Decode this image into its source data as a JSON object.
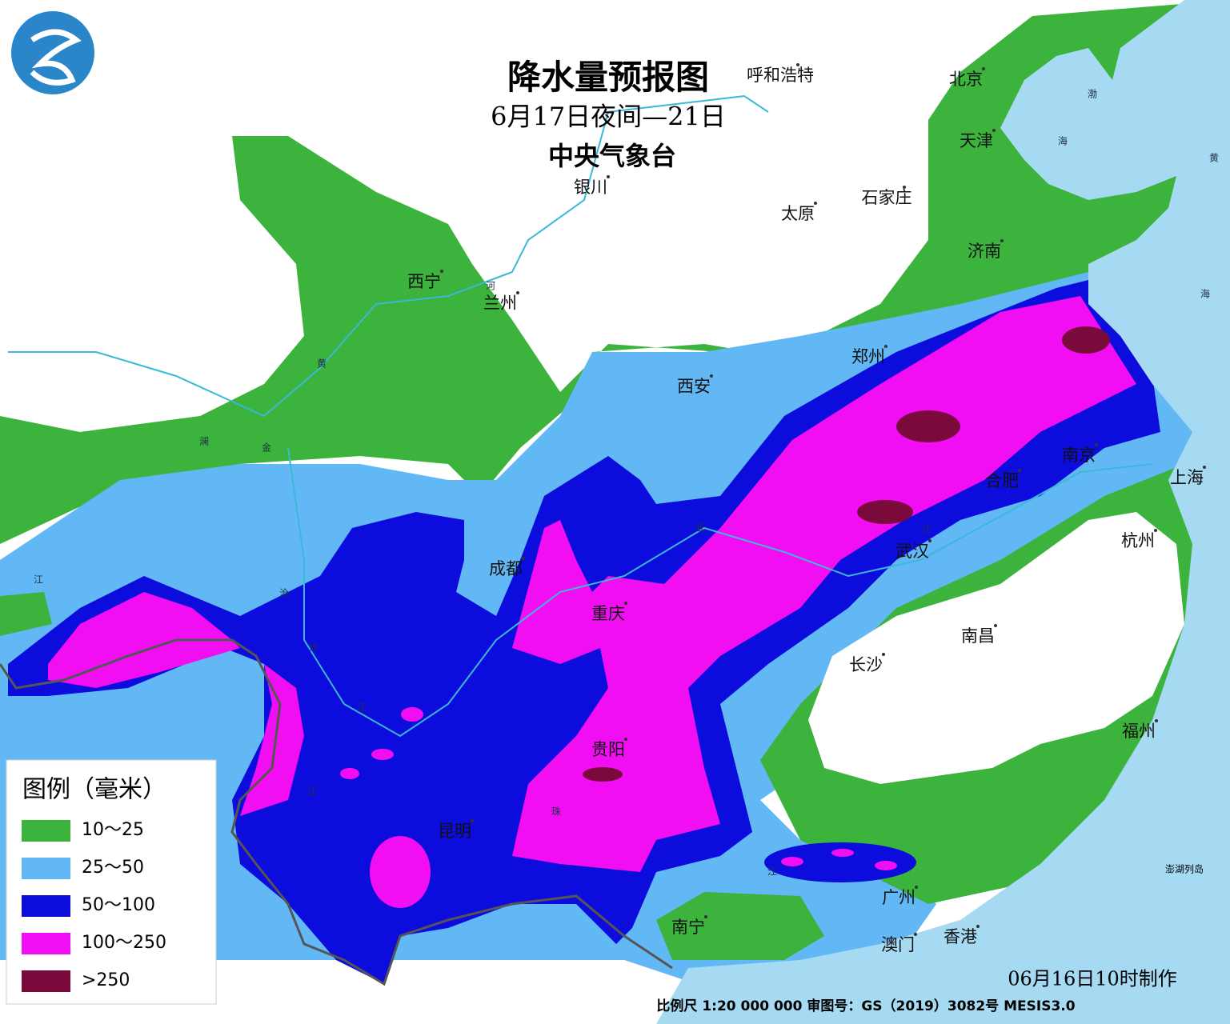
{
  "header": {
    "title": "降水量预报图",
    "subtitle": "6月17日夜间—21日",
    "issuer": "中央气象台"
  },
  "cities": [
    "呼和浩特",
    "北京",
    "天津",
    "银川",
    "太原",
    "石家庄",
    "西宁",
    "兰州",
    "济南",
    "郑州",
    "西安",
    "南京",
    "合肥",
    "上海",
    "成都",
    "武汉",
    "杭州",
    "重庆",
    "南昌",
    "长沙",
    "福州",
    "贵阳",
    "昆明",
    "广州",
    "南宁",
    "澳门",
    "香港"
  ],
  "places": [
    "澎湖列岛"
  ],
  "water_labels": [
    "河",
    "黄",
    "澜",
    "金",
    "江",
    "沧",
    "沙",
    "江",
    "长",
    "江",
    "江",
    "珠",
    "江",
    "渤",
    "海",
    "黄",
    "海"
  ],
  "legend": {
    "title": "图例（毫米）",
    "items": [
      {
        "label": "10～25",
        "color": "#3cb33c"
      },
      {
        "label": "25～50",
        "color": "#62b8f5"
      },
      {
        "label": "50～100",
        "color": "#0c0cdc"
      },
      {
        "label": "100～250",
        "color": "#f20ef2"
      },
      {
        "label": ">250",
        "color": "#7a0a3c"
      }
    ]
  },
  "footer": {
    "made": "06月16日10时制作",
    "scale": "比例尺 1:20 000 000  审图号：GS（2019）3082号 MESIS3.0"
  }
}
